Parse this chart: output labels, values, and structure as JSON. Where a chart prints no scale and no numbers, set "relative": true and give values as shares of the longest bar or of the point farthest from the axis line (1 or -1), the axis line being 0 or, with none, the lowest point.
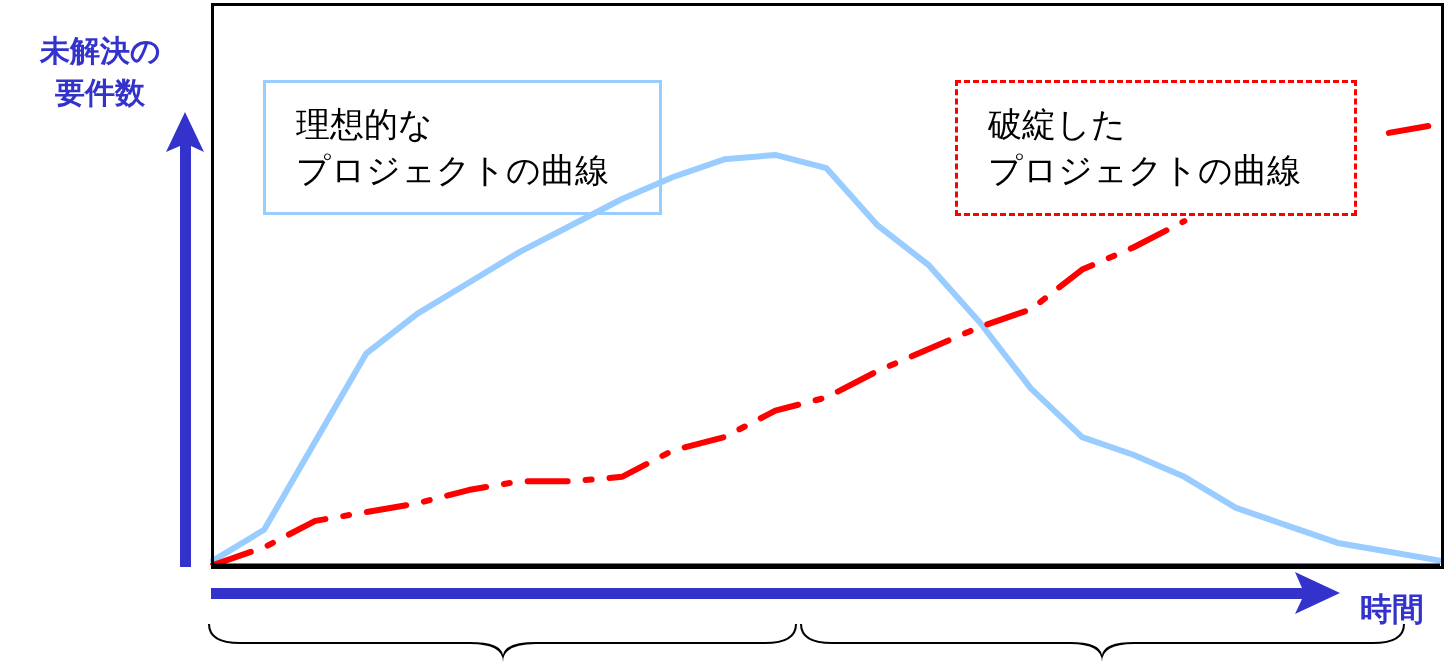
{
  "chart_data": {
    "type": "line",
    "relative": true,
    "ylabel": "未解決の要件数",
    "xlabel": "時間",
    "categories": [
      null,
      null,
      null,
      null,
      null,
      null,
      null,
      null,
      null,
      null,
      null,
      null,
      null,
      null,
      null,
      null,
      null,
      null,
      null,
      null,
      null,
      null,
      null,
      null,
      null
    ],
    "series": [
      {
        "name": "理想的なプロジェクトの曲線",
        "color": "#99ccff",
        "line_style": "solid",
        "values": [
          0.01,
          0.08,
          0.28,
          0.48,
          0.57,
          0.64,
          0.71,
          0.77,
          0.83,
          0.88,
          0.92,
          0.93,
          0.9,
          0.77,
          0.68,
          0.55,
          0.4,
          0.29,
          0.25,
          0.2,
          0.13,
          0.09,
          0.05,
          0.03,
          0.01
        ]
      },
      {
        "name": "破綻したプロジェクトの曲線",
        "color": "#ff0000",
        "line_style": "dashed",
        "values": [
          0,
          0.04,
          0.1,
          0.12,
          0.14,
          0.17,
          0.19,
          0.19,
          0.2,
          0.26,
          0.29,
          0.35,
          0.38,
          0.44,
          0.49,
          0.54,
          0.58,
          0.67,
          0.72,
          0.78,
          null,
          null,
          null,
          0.98,
          1
        ]
      }
    ]
  }
}
